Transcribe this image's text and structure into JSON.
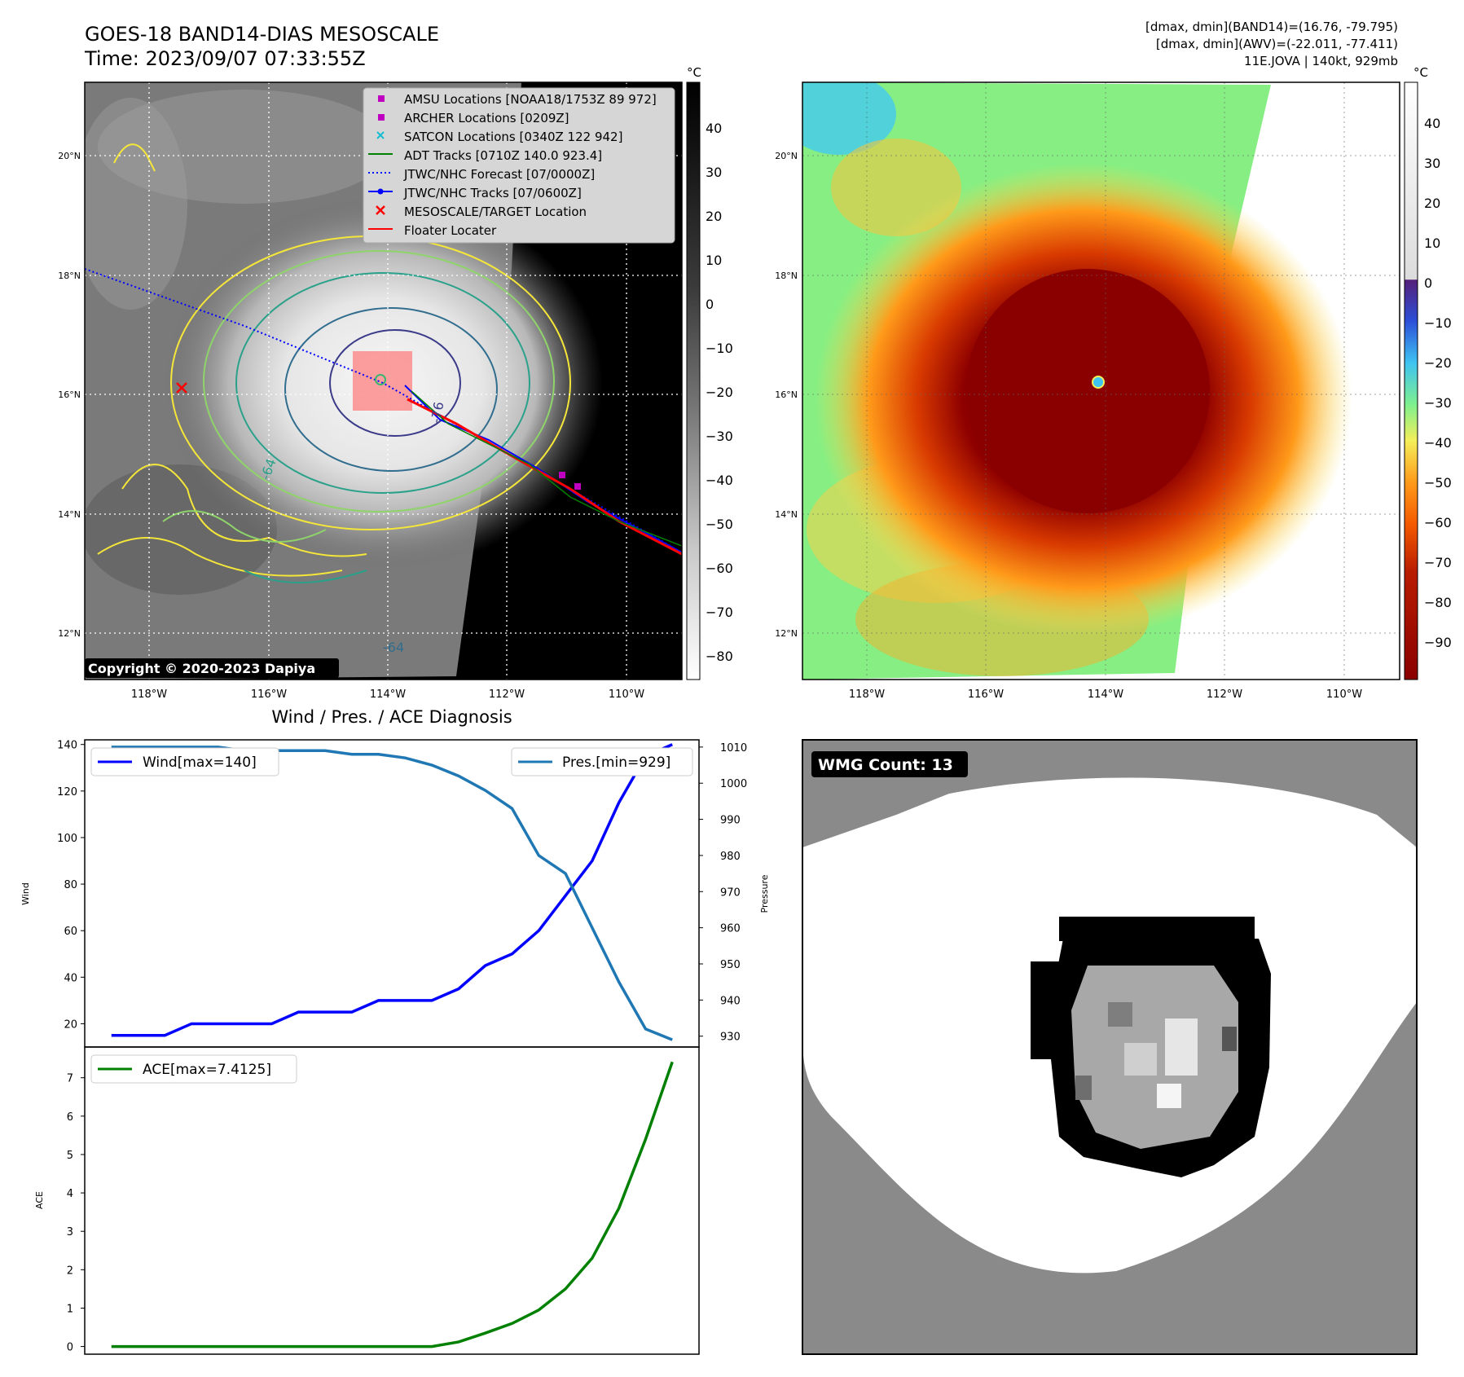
{
  "header": {
    "title_line1": "GOES-18 BAND14-DIAS MESOSCALE",
    "title_line2": "Time: 2023/09/07 07:33:55Z",
    "stats_line1": "[dmax, dmin](BAND14)=(16.76, -79.795)",
    "stats_line2": "[dmax, dmin](AWV)=(-22.011, -77.411)",
    "stats_line3": "11E.JOVA | 140kt, 929mb"
  },
  "copyright": "Copyright © 2020-2023 Dapiya",
  "colors": {
    "wind": "#0000ff",
    "pressure": "#1f77b4",
    "ace": "#008000",
    "forecast": "#0000ff",
    "floater": "#ff0000",
    "amsu": "#c000c0",
    "satcon": "#17becf",
    "adt": "#008000"
  },
  "maps": {
    "lat_labels": [
      "20°N",
      "18°N",
      "16°N",
      "14°N",
      "12°N"
    ],
    "lon_labels": [
      "118°W",
      "116°W",
      "114°W",
      "112°W",
      "110°W"
    ],
    "legend": [
      {
        "label": "AMSU Locations [NOAA18/1753Z 89 972]",
        "icon": "magenta-square"
      },
      {
        "label": "ARCHER Locations [0209Z]",
        "icon": "magenta-square"
      },
      {
        "label": "SATCON Locations [0340Z 122 942]",
        "icon": "cyan-x"
      },
      {
        "label": "ADT Tracks [0710Z 140.0 923.4]",
        "icon": "green-line"
      },
      {
        "label": "JTWC/NHC Forecast [07/0000Z]",
        "icon": "blue-dotted-line"
      },
      {
        "label": "JTWC/NHC Tracks [07/0600Z]",
        "icon": "blue-line-dot"
      },
      {
        "label": "MESOSCALE/TARGET Location",
        "icon": "red-x"
      },
      {
        "label": "Floater Locater",
        "icon": "red-line"
      }
    ],
    "contour_labels": [
      "-64",
      "-76",
      "-64",
      "-64"
    ],
    "colorbar_ir": {
      "unit": "°C",
      "ticks": [
        "40",
        "30",
        "20",
        "10",
        "0",
        "−10",
        "−20",
        "−30",
        "−40",
        "−50",
        "−60",
        "−70",
        "−80"
      ]
    },
    "colorbar_awv": {
      "unit": "°C",
      "ticks": [
        "40",
        "30",
        "20",
        "10",
        "0",
        "−10",
        "−20",
        "−30",
        "−40",
        "−50",
        "−60",
        "−70",
        "−80",
        "−90"
      ]
    }
  },
  "chart_data": [
    {
      "type": "line",
      "title": "Wind / Pres. / ACE Diagnosis",
      "x": [
        0,
        1,
        2,
        3,
        4,
        5,
        6,
        7,
        8,
        9,
        10,
        11,
        12,
        13,
        14,
        15,
        16,
        17,
        18,
        19,
        20,
        21
      ],
      "series": [
        {
          "name": "Wind[max=140]",
          "axis": "left",
          "values": [
            15,
            15,
            15,
            20,
            20,
            20,
            20,
            25,
            25,
            25,
            30,
            30,
            30,
            35,
            45,
            50,
            60,
            75,
            90,
            115,
            135,
            140
          ]
        },
        {
          "name": "Pres.[min=929]",
          "axis": "right",
          "values": [
            1010,
            1010,
            1010,
            1010,
            1010,
            1009,
            1009,
            1009,
            1009,
            1008,
            1008,
            1007,
            1005,
            1002,
            998,
            993,
            980,
            975,
            960,
            945,
            932,
            929
          ]
        }
      ],
      "ylabel": "Wind",
      "ylabel_right": "Pressure",
      "ylim": [
        10,
        142
      ],
      "ylim_right": [
        927,
        1012
      ],
      "yticks": [
        20,
        40,
        60,
        80,
        100,
        120,
        140
      ],
      "yticks_right": [
        930,
        940,
        950,
        960,
        970,
        980,
        990,
        1000,
        1010
      ],
      "legend": "top-left and top-right"
    },
    {
      "type": "line",
      "x": [
        0,
        1,
        2,
        3,
        4,
        5,
        6,
        7,
        8,
        9,
        10,
        11,
        12,
        13,
        14,
        15,
        16,
        17,
        18,
        19,
        20,
        21
      ],
      "series": [
        {
          "name": "ACE[max=7.4125]",
          "values": [
            0,
            0,
            0,
            0,
            0,
            0,
            0,
            0,
            0,
            0,
            0,
            0,
            0,
            0.12,
            0.35,
            0.6,
            0.95,
            1.5,
            2.3,
            3.6,
            5.4,
            7.4125
          ]
        }
      ],
      "ylabel": "ACE",
      "ylim": [
        -0.2,
        7.8
      ],
      "yticks": [
        0,
        1,
        2,
        3,
        4,
        5,
        6,
        7
      ],
      "legend": "top-left"
    }
  ],
  "wmg": {
    "label": "WMG Count: 13"
  }
}
